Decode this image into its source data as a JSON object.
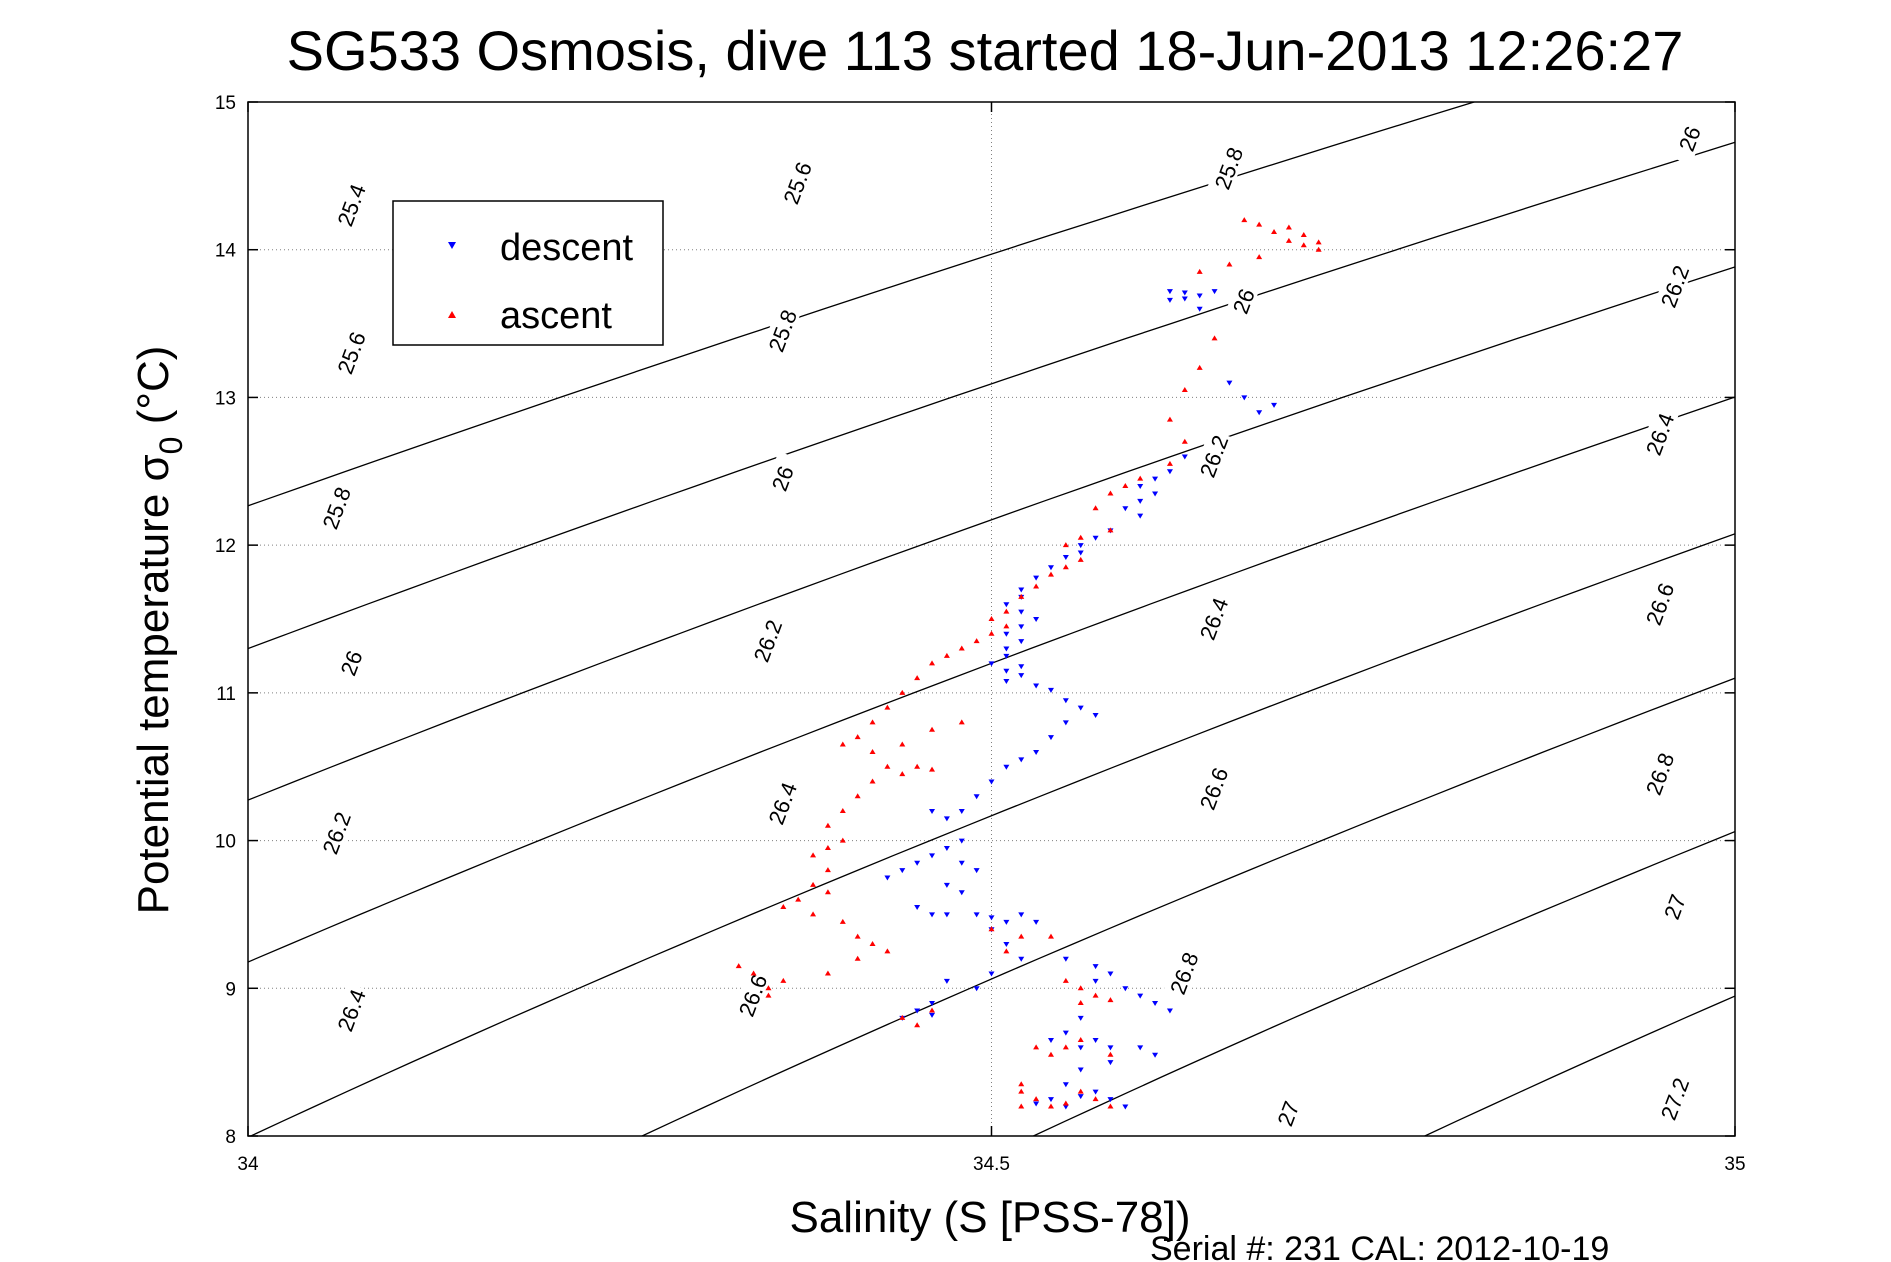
{
  "chart_data": {
    "type": "scatter",
    "title": "SG533 Osmosis, dive 113 started 18-Jun-2013 12:26:27",
    "xlabel": "Salinity (S [PSS-78])",
    "ylabel_main": "Potential temperature σ",
    "ylabel_sub": "0",
    "ylabel_unit": " (°C)",
    "xlim": [
      34,
      35
    ],
    "ylim": [
      8,
      15
    ],
    "xticks": [
      34,
      34.5,
      35
    ],
    "xtick_labels": [
      "34",
      "34.5",
      "35"
    ],
    "yticks": [
      8,
      9,
      10,
      11,
      12,
      13,
      14,
      15
    ],
    "ytick_labels": [
      "8",
      "9",
      "10",
      "11",
      "12",
      "13",
      "14",
      "15"
    ],
    "grid": "dotted",
    "legend_position": "top-left",
    "footer": "Serial #: 231  CAL: 2012-10-19",
    "contour_levels": [
      25.4,
      25.6,
      25.8,
      26,
      26.2,
      26.4,
      26.6,
      26.8,
      27,
      27.2
    ],
    "contour_labels": [
      {
        "text": "25.4",
        "s": 34.07,
        "t": 14.3
      },
      {
        "text": "25.6",
        "s": 34.37,
        "t": 14.45
      },
      {
        "text": "25.8",
        "s": 34.66,
        "t": 14.55
      },
      {
        "text": "26",
        "s": 34.97,
        "t": 14.75
      },
      {
        "text": "25.6",
        "s": 34.07,
        "t": 13.3
      },
      {
        "text": "25.8",
        "s": 34.36,
        "t": 13.45
      },
      {
        "text": "26",
        "s": 34.67,
        "t": 13.65
      },
      {
        "text": "26.2",
        "s": 34.96,
        "t": 13.75
      },
      {
        "text": "25.8",
        "s": 34.06,
        "t": 12.25
      },
      {
        "text": "26",
        "s": 34.36,
        "t": 12.45
      },
      {
        "text": "26.2",
        "s": 34.65,
        "t": 12.6
      },
      {
        "text": "26.4",
        "s": 34.95,
        "t": 12.75
      },
      {
        "text": "26",
        "s": 34.07,
        "t": 11.2
      },
      {
        "text": "26.2",
        "s": 34.35,
        "t": 11.35
      },
      {
        "text": "26.4",
        "s": 34.65,
        "t": 11.5
      },
      {
        "text": "26.6",
        "s": 34.95,
        "t": 11.6
      },
      {
        "text": "26.2",
        "s": 34.06,
        "t": 10.05
      },
      {
        "text": "26.4",
        "s": 34.36,
        "t": 10.25
      },
      {
        "text": "26.6",
        "s": 34.65,
        "t": 10.35
      },
      {
        "text": "26.8",
        "s": 34.95,
        "t": 10.45
      },
      {
        "text": "26.4",
        "s": 34.07,
        "t": 8.85
      },
      {
        "text": "26.6",
        "s": 34.34,
        "t": 8.95
      },
      {
        "text": "26.8",
        "s": 34.63,
        "t": 9.1
      },
      {
        "text": "27",
        "s": 34.96,
        "t": 9.55
      },
      {
        "text": "27",
        "s": 34.7,
        "t": 8.15
      },
      {
        "text": "27.2",
        "s": 34.96,
        "t": 8.25
      }
    ],
    "series": [
      {
        "name": "descent",
        "color": "#0000ff",
        "marker": "triangle-down",
        "points": [
          [
            34.62,
            13.72
          ],
          [
            34.63,
            13.71
          ],
          [
            34.64,
            13.69
          ],
          [
            34.62,
            13.66
          ],
          [
            34.64,
            13.6
          ],
          [
            34.65,
            13.72
          ],
          [
            34.63,
            13.67
          ],
          [
            34.66,
            13.1
          ],
          [
            34.67,
            13.0
          ],
          [
            34.68,
            12.9
          ],
          [
            34.69,
            12.95
          ],
          [
            34.63,
            12.6
          ],
          [
            34.62,
            12.5
          ],
          [
            34.61,
            12.45
          ],
          [
            34.6,
            12.4
          ],
          [
            34.61,
            12.35
          ],
          [
            34.6,
            12.3
          ],
          [
            34.59,
            12.25
          ],
          [
            34.6,
            12.2
          ],
          [
            34.58,
            12.1
          ],
          [
            34.57,
            12.05
          ],
          [
            34.56,
            12.0
          ],
          [
            34.56,
            11.95
          ],
          [
            34.55,
            11.92
          ],
          [
            34.54,
            11.85
          ],
          [
            34.53,
            11.78
          ],
          [
            34.52,
            11.7
          ],
          [
            34.52,
            11.65
          ],
          [
            34.51,
            11.6
          ],
          [
            34.52,
            11.55
          ],
          [
            34.53,
            11.5
          ],
          [
            34.52,
            11.45
          ],
          [
            34.51,
            11.4
          ],
          [
            34.52,
            11.35
          ],
          [
            34.51,
            11.3
          ],
          [
            34.51,
            11.25
          ],
          [
            34.5,
            11.2
          ],
          [
            34.51,
            11.15
          ],
          [
            34.52,
            11.12
          ],
          [
            34.51,
            11.08
          ],
          [
            34.53,
            11.05
          ],
          [
            34.52,
            11.18
          ],
          [
            34.54,
            11.02
          ],
          [
            34.55,
            10.95
          ],
          [
            34.56,
            10.9
          ],
          [
            34.57,
            10.85
          ],
          [
            34.55,
            10.8
          ],
          [
            34.54,
            10.7
          ],
          [
            34.53,
            10.6
          ],
          [
            34.52,
            10.55
          ],
          [
            34.51,
            10.5
          ],
          [
            34.5,
            10.4
          ],
          [
            34.49,
            10.3
          ],
          [
            34.48,
            10.2
          ],
          [
            34.47,
            10.15
          ],
          [
            34.46,
            10.2
          ],
          [
            34.48,
            10.0
          ],
          [
            34.47,
            9.95
          ],
          [
            34.46,
            9.9
          ],
          [
            34.48,
            9.85
          ],
          [
            34.49,
            9.8
          ],
          [
            34.45,
            9.85
          ],
          [
            34.44,
            9.8
          ],
          [
            34.43,
            9.75
          ],
          [
            34.47,
            9.7
          ],
          [
            34.48,
            9.65
          ],
          [
            34.45,
            9.55
          ],
          [
            34.46,
            9.5
          ],
          [
            34.47,
            9.5
          ],
          [
            34.49,
            9.5
          ],
          [
            34.5,
            9.48
          ],
          [
            34.51,
            9.45
          ],
          [
            34.52,
            9.5
          ],
          [
            34.53,
            9.45
          ],
          [
            34.5,
            9.4
          ],
          [
            34.51,
            9.3
          ],
          [
            34.52,
            9.2
          ],
          [
            34.5,
            9.1
          ],
          [
            34.49,
            9.0
          ],
          [
            34.47,
            9.05
          ],
          [
            34.46,
            8.9
          ],
          [
            34.45,
            8.85
          ],
          [
            34.44,
            8.8
          ],
          [
            34.46,
            8.82
          ],
          [
            34.55,
            9.2
          ],
          [
            34.57,
            9.15
          ],
          [
            34.58,
            9.1
          ],
          [
            34.57,
            9.05
          ],
          [
            34.59,
            9.0
          ],
          [
            34.6,
            8.95
          ],
          [
            34.61,
            8.9
          ],
          [
            34.62,
            8.85
          ],
          [
            34.56,
            8.8
          ],
          [
            34.55,
            8.7
          ],
          [
            34.54,
            8.65
          ],
          [
            34.56,
            8.6
          ],
          [
            34.57,
            8.65
          ],
          [
            34.58,
            8.6
          ],
          [
            34.6,
            8.6
          ],
          [
            34.61,
            8.55
          ],
          [
            34.58,
            8.5
          ],
          [
            34.56,
            8.45
          ],
          [
            34.55,
            8.35
          ],
          [
            34.57,
            8.3
          ],
          [
            34.58,
            8.25
          ],
          [
            34.59,
            8.2
          ],
          [
            34.55,
            8.2
          ],
          [
            34.54,
            8.25
          ],
          [
            34.53,
            8.22
          ],
          [
            34.56,
            8.27
          ]
        ]
      },
      {
        "name": "ascent",
        "color": "#ff0000",
        "marker": "triangle-up",
        "points": [
          [
            34.72,
            14.05
          ],
          [
            34.71,
            14.1
          ],
          [
            34.7,
            14.15
          ],
          [
            34.68,
            14.17
          ],
          [
            34.67,
            14.2
          ],
          [
            34.69,
            14.12
          ],
          [
            34.7,
            14.06
          ],
          [
            34.71,
            14.03
          ],
          [
            34.72,
            14.0
          ],
          [
            34.68,
            13.95
          ],
          [
            34.66,
            13.9
          ],
          [
            34.64,
            13.85
          ],
          [
            34.65,
            13.4
          ],
          [
            34.64,
            13.2
          ],
          [
            34.63,
            13.05
          ],
          [
            34.62,
            12.85
          ],
          [
            34.63,
            12.7
          ],
          [
            34.62,
            12.55
          ],
          [
            34.6,
            12.45
          ],
          [
            34.59,
            12.4
          ],
          [
            34.58,
            12.35
          ],
          [
            34.57,
            12.25
          ],
          [
            34.58,
            12.1
          ],
          [
            34.56,
            12.05
          ],
          [
            34.55,
            12.0
          ],
          [
            34.56,
            11.9
          ],
          [
            34.55,
            11.85
          ],
          [
            34.54,
            11.8
          ],
          [
            34.53,
            11.72
          ],
          [
            34.52,
            11.65
          ],
          [
            34.51,
            11.55
          ],
          [
            34.5,
            11.5
          ],
          [
            34.51,
            11.45
          ],
          [
            34.5,
            11.4
          ],
          [
            34.49,
            11.35
          ],
          [
            34.48,
            11.3
          ],
          [
            34.47,
            11.25
          ],
          [
            34.46,
            11.2
          ],
          [
            34.45,
            11.1
          ],
          [
            34.44,
            11.0
          ],
          [
            34.43,
            10.9
          ],
          [
            34.42,
            10.8
          ],
          [
            34.41,
            10.7
          ],
          [
            34.4,
            10.65
          ],
          [
            34.42,
            10.6
          ],
          [
            34.44,
            10.65
          ],
          [
            34.46,
            10.75
          ],
          [
            34.48,
            10.8
          ],
          [
            34.43,
            10.5
          ],
          [
            34.44,
            10.45
          ],
          [
            34.45,
            10.5
          ],
          [
            34.46,
            10.48
          ],
          [
            34.42,
            10.4
          ],
          [
            34.41,
            10.3
          ],
          [
            34.4,
            10.2
          ],
          [
            34.39,
            10.1
          ],
          [
            34.4,
            10.0
          ],
          [
            34.39,
            9.95
          ],
          [
            34.38,
            9.9
          ],
          [
            34.39,
            9.8
          ],
          [
            34.38,
            9.7
          ],
          [
            34.39,
            9.65
          ],
          [
            34.37,
            9.6
          ],
          [
            34.36,
            9.55
          ],
          [
            34.38,
            9.5
          ],
          [
            34.4,
            9.45
          ],
          [
            34.41,
            9.35
          ],
          [
            34.42,
            9.3
          ],
          [
            34.43,
            9.25
          ],
          [
            34.41,
            9.2
          ],
          [
            34.39,
            9.1
          ],
          [
            34.36,
            9.05
          ],
          [
            34.35,
            9.0
          ],
          [
            34.34,
            9.1
          ],
          [
            34.33,
            9.15
          ],
          [
            34.35,
            8.95
          ],
          [
            34.44,
            8.8
          ],
          [
            34.45,
            8.75
          ],
          [
            34.46,
            8.85
          ],
          [
            34.5,
            9.4
          ],
          [
            34.52,
            9.35
          ],
          [
            34.54,
            9.35
          ],
          [
            34.51,
            9.25
          ],
          [
            34.55,
            9.05
          ],
          [
            34.56,
            9.0
          ],
          [
            34.57,
            8.95
          ],
          [
            34.56,
            8.9
          ],
          [
            34.58,
            8.92
          ],
          [
            34.53,
            8.6
          ],
          [
            34.54,
            8.55
          ],
          [
            34.55,
            8.6
          ],
          [
            34.56,
            8.65
          ],
          [
            34.58,
            8.55
          ],
          [
            34.52,
            8.3
          ],
          [
            34.53,
            8.25
          ],
          [
            34.52,
            8.2
          ],
          [
            34.54,
            8.2
          ],
          [
            34.55,
            8.22
          ],
          [
            34.56,
            8.3
          ],
          [
            34.57,
            8.25
          ],
          [
            34.58,
            8.2
          ],
          [
            34.52,
            8.35
          ]
        ]
      }
    ]
  }
}
